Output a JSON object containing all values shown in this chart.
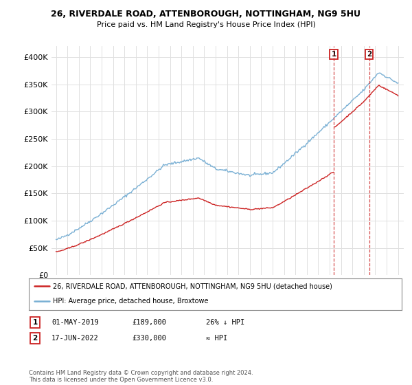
{
  "title1": "26, RIVERDALE ROAD, ATTENBOROUGH, NOTTINGHAM, NG9 5HU",
  "title2": "Price paid vs. HM Land Registry's House Price Index (HPI)",
  "ylim": [
    0,
    420000
  ],
  "yticks": [
    0,
    50000,
    100000,
    150000,
    200000,
    250000,
    300000,
    350000,
    400000
  ],
  "ytick_labels": [
    "£0",
    "£50K",
    "£100K",
    "£150K",
    "£200K",
    "£250K",
    "£300K",
    "£350K",
    "£400K"
  ],
  "hpi_color": "#7ab0d4",
  "price_color": "#cc2222",
  "marker1_year": 2019.37,
  "marker2_year": 2022.46,
  "legend_entries": [
    "26, RIVERDALE ROAD, ATTENBOROUGH, NOTTINGHAM, NG9 5HU (detached house)",
    "HPI: Average price, detached house, Broxtowe"
  ],
  "table_rows": [
    [
      "1",
      "01-MAY-2019",
      "£189,000",
      "26% ↓ HPI"
    ],
    [
      "2",
      "17-JUN-2022",
      "£330,000",
      "≈ HPI"
    ]
  ],
  "footer": "Contains HM Land Registry data © Crown copyright and database right 2024.\nThis data is licensed under the Open Government Licence v3.0.",
  "bg_color": "#ffffff",
  "grid_color": "#e0e0e0",
  "price_2019": 189000,
  "price_2022": 330000
}
